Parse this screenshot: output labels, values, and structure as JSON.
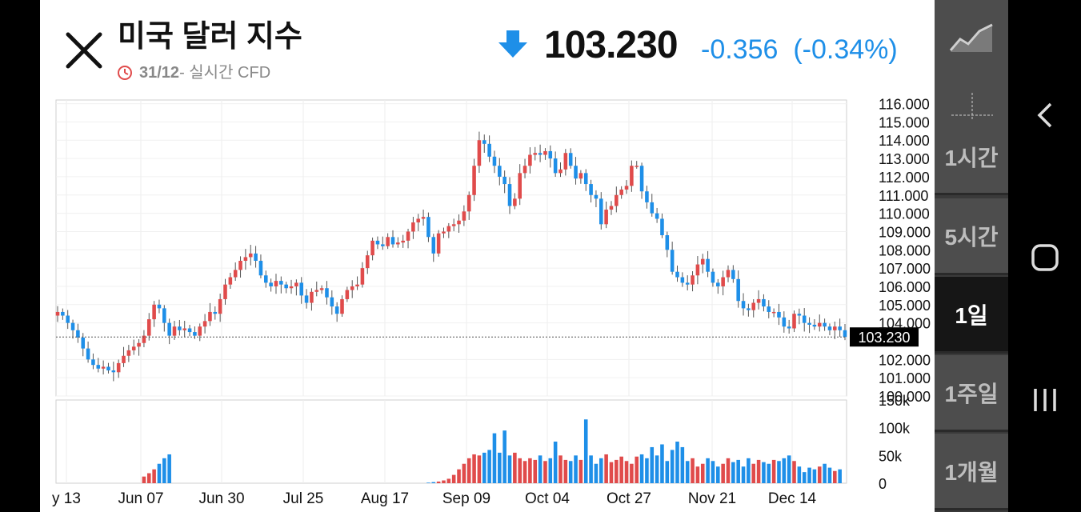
{
  "header": {
    "title": "미국 달러 지수",
    "subtitle_date": "31/12",
    "subtitle_rest": " - 실시간 CFD",
    "price": "103.230",
    "change": "-0.356",
    "change_pct": "(-0.34%)",
    "icons": {
      "close": "close-icon",
      "clock": "clock-icon",
      "direction": "down-arrow-icon"
    }
  },
  "colors": {
    "up": "#e04b4b",
    "down": "#1e8fe8",
    "accent": "#1e8fe8"
  },
  "panel": {
    "icons": [
      "line-chart-icon",
      "crosshair-icon"
    ],
    "timeframes": [
      "1시간",
      "5시간",
      "1일",
      "1주일",
      "1개월"
    ],
    "selected": "1일"
  },
  "nav": {
    "icons": [
      "back-icon",
      "home-icon",
      "recent-apps-icon"
    ]
  },
  "chart_data": {
    "type": "candlestick",
    "price_label": "103.230",
    "last_value": 103.23,
    "price_axis": {
      "ticks": [
        "116.000",
        "115.000",
        "114.000",
        "113.000",
        "112.000",
        "111.000",
        "110.000",
        "109.000",
        "108.000",
        "107.000",
        "106.000",
        "105.000",
        "104.000",
        "102.000",
        "101.000",
        "100.000"
      ],
      "range": [
        100,
        116.2
      ]
    },
    "volume_axis": {
      "ticks": [
        "150k",
        "100k",
        "50k",
        "0"
      ],
      "range": [
        0,
        150
      ]
    },
    "x_labels": [
      "y 13",
      "Jun 07",
      "Jun 30",
      "Jul 25",
      "Aug 17",
      "Sep 09",
      "Oct 04",
      "Oct 27",
      "Nov 21",
      "Dec 14"
    ],
    "series": [
      {
        "name": "price",
        "closes": [
          104.6,
          104.4,
          104.0,
          103.6,
          103.2,
          102.6,
          102.0,
          101.7,
          101.5,
          101.6,
          101.4,
          101.3,
          101.8,
          102.2,
          102.5,
          102.7,
          102.9,
          103.3,
          104.2,
          105.0,
          104.8,
          104.0,
          103.3,
          103.8,
          103.6,
          103.7,
          103.5,
          103.3,
          103.8,
          104.1,
          104.6,
          104.5,
          105.3,
          106.1,
          106.5,
          106.9,
          107.4,
          107.6,
          107.8,
          107.4,
          106.6,
          106.2,
          106.0,
          106.3,
          106.1,
          105.9,
          106.0,
          106.2,
          105.5,
          105.1,
          105.7,
          105.8,
          105.9,
          105.4,
          104.9,
          104.5,
          105.3,
          105.8,
          106.0,
          106.1,
          107.0,
          107.7,
          108.5,
          108.3,
          108.2,
          108.7,
          108.3,
          108.4,
          108.5,
          109.0,
          109.5,
          109.7,
          109.8,
          108.7,
          107.8,
          108.9,
          109.0,
          109.3,
          109.4,
          109.6,
          110.1,
          111.0,
          112.6,
          114.0,
          113.8,
          113.1,
          112.6,
          112.0,
          111.6,
          110.4,
          110.8,
          112.2,
          112.6,
          113.2,
          113.3,
          113.2,
          113.4,
          113.0,
          112.2,
          112.4,
          113.3,
          112.6,
          111.9,
          112.2,
          111.6,
          111.0,
          110.8,
          109.4,
          110.2,
          110.4,
          111.0,
          111.3,
          111.5,
          112.6,
          112.6,
          111.2,
          110.6,
          110.0,
          109.7,
          108.8,
          108.0,
          106.8,
          106.5,
          106.2,
          106.1,
          106.6,
          107.2,
          107.5,
          106.8,
          106.2,
          106.0,
          106.5,
          106.9,
          106.4,
          105.2,
          104.8,
          104.7,
          105.1,
          105.3,
          104.9,
          104.6,
          104.6,
          104.3,
          103.8,
          103.7,
          104.5,
          104.4,
          104.0,
          103.9,
          103.8,
          104.0,
          103.8,
          103.6,
          103.8,
          103.6,
          103.23
        ]
      },
      {
        "name": "volume",
        "values": [
          0,
          0,
          0,
          0,
          0,
          0,
          0,
          0,
          0,
          0,
          0,
          0,
          0,
          0,
          0,
          0,
          0,
          12,
          18,
          25,
          35,
          45,
          52,
          0,
          0,
          0,
          0,
          0,
          0,
          0,
          0,
          0,
          0,
          0,
          0,
          0,
          0,
          0,
          0,
          0,
          0,
          0,
          0,
          0,
          0,
          0,
          0,
          0,
          0,
          0,
          0,
          0,
          0,
          0,
          0,
          0,
          0,
          0,
          0,
          0,
          0,
          0,
          0,
          0,
          0,
          0,
          0,
          0,
          0,
          0,
          0,
          0,
          0,
          1,
          2,
          3,
          5,
          8,
          15,
          25,
          35,
          45,
          52,
          50,
          55,
          60,
          90,
          55,
          95,
          50,
          55,
          45,
          40,
          45,
          42,
          50,
          40,
          45,
          75,
          50,
          42,
          40,
          50,
          42,
          115,
          50,
          35,
          45,
          52,
          38,
          42,
          48,
          40,
          35,
          48,
          52,
          45,
          65,
          50,
          70,
          40,
          60,
          75,
          65,
          40,
          45,
          30,
          35,
          45,
          40,
          30,
          35,
          45,
          38,
          42,
          30,
          45,
          35,
          42,
          38,
          35,
          42,
          40,
          45,
          50,
          40,
          30,
          20,
          28,
          25,
          30,
          35,
          28,
          22,
          25
        ]
      }
    ]
  }
}
